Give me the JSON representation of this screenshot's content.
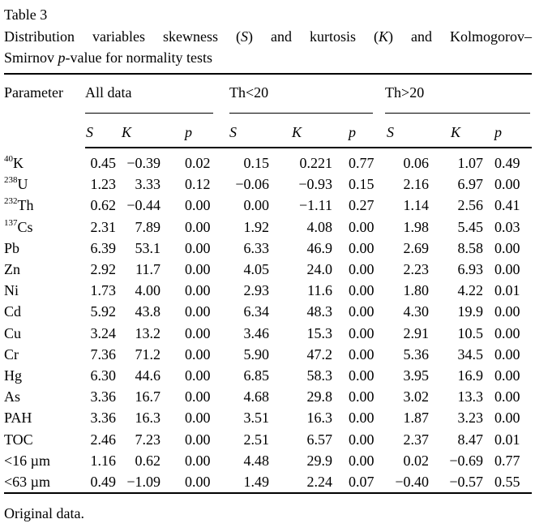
{
  "title": "Table 3",
  "caption": {
    "seg1": "Distribution variables skewness (",
    "s": "S",
    "seg2": ") and kurtosis (",
    "k": "K",
    "seg3": ") and Kolmogorov–",
    "line2_seg1": "Smirnov ",
    "p": "p",
    "line2_seg2": "-value for normality tests"
  },
  "table": {
    "param_header": "Parameter",
    "groups": [
      {
        "label": "All data"
      },
      {
        "label": "Th<20"
      },
      {
        "label": "Th>20"
      }
    ],
    "sub_headers": [
      "S",
      "K",
      "p"
    ],
    "rows": [
      {
        "param": {
          "sup": "40",
          "base": "K"
        },
        "all_data": [
          "0.45",
          "−0.39",
          "0.02"
        ],
        "th_lt_20": [
          "0.15",
          "0.221",
          "0.77"
        ],
        "th_gt_20": [
          "0.06",
          "1.07",
          "0.49"
        ]
      },
      {
        "param": {
          "sup": "238",
          "base": "U"
        },
        "all_data": [
          "1.23",
          "3.33",
          "0.12"
        ],
        "th_lt_20": [
          "−0.06",
          "−0.93",
          "0.15"
        ],
        "th_gt_20": [
          "2.16",
          "6.97",
          "0.00"
        ]
      },
      {
        "param": {
          "sup": "232",
          "base": "Th"
        },
        "all_data": [
          "0.62",
          "−0.44",
          "0.00"
        ],
        "th_lt_20": [
          "0.00",
          "−1.11",
          "0.27"
        ],
        "th_gt_20": [
          "1.14",
          "2.56",
          "0.41"
        ]
      },
      {
        "param": {
          "sup": "137",
          "base": "Cs"
        },
        "all_data": [
          "2.31",
          "7.89",
          "0.00"
        ],
        "th_lt_20": [
          "1.92",
          "4.08",
          "0.00"
        ],
        "th_gt_20": [
          "1.98",
          "5.45",
          "0.03"
        ]
      },
      {
        "param": {
          "sup": "",
          "base": "Pb"
        },
        "all_data": [
          "6.39",
          "53.1",
          "0.00"
        ],
        "th_lt_20": [
          "6.33",
          "46.9",
          "0.00"
        ],
        "th_gt_20": [
          "2.69",
          "8.58",
          "0.00"
        ]
      },
      {
        "param": {
          "sup": "",
          "base": "Zn"
        },
        "all_data": [
          "2.92",
          "11.7",
          "0.00"
        ],
        "th_lt_20": [
          "4.05",
          "24.0",
          "0.00"
        ],
        "th_gt_20": [
          "2.23",
          "6.93",
          "0.00"
        ]
      },
      {
        "param": {
          "sup": "",
          "base": "Ni"
        },
        "all_data": [
          "1.73",
          "4.00",
          "0.00"
        ],
        "th_lt_20": [
          "2.93",
          "11.6",
          "0.00"
        ],
        "th_gt_20": [
          "1.80",
          "4.22",
          "0.01"
        ]
      },
      {
        "param": {
          "sup": "",
          "base": "Cd"
        },
        "all_data": [
          "5.92",
          "43.8",
          "0.00"
        ],
        "th_lt_20": [
          "6.34",
          "48.3",
          "0.00"
        ],
        "th_gt_20": [
          "4.30",
          "19.9",
          "0.00"
        ]
      },
      {
        "param": {
          "sup": "",
          "base": "Cu"
        },
        "all_data": [
          "3.24",
          "13.2",
          "0.00"
        ],
        "th_lt_20": [
          "3.46",
          "15.3",
          "0.00"
        ],
        "th_gt_20": [
          "2.91",
          "10.5",
          "0.00"
        ]
      },
      {
        "param": {
          "sup": "",
          "base": "Cr"
        },
        "all_data": [
          "7.36",
          "71.2",
          "0.00"
        ],
        "th_lt_20": [
          "5.90",
          "47.2",
          "0.00"
        ],
        "th_gt_20": [
          "5.36",
          "34.5",
          "0.00"
        ]
      },
      {
        "param": {
          "sup": "",
          "base": "Hg"
        },
        "all_data": [
          "6.30",
          "44.6",
          "0.00"
        ],
        "th_lt_20": [
          "6.85",
          "58.3",
          "0.00"
        ],
        "th_gt_20": [
          "3.95",
          "16.9",
          "0.00"
        ]
      },
      {
        "param": {
          "sup": "",
          "base": "As"
        },
        "all_data": [
          "3.36",
          "16.7",
          "0.00"
        ],
        "th_lt_20": [
          "4.68",
          "29.8",
          "0.00"
        ],
        "th_gt_20": [
          "3.02",
          "13.3",
          "0.00"
        ]
      },
      {
        "param": {
          "sup": "",
          "base": "PAH"
        },
        "all_data": [
          "3.36",
          "16.3",
          "0.00"
        ],
        "th_lt_20": [
          "3.51",
          "16.3",
          "0.00"
        ],
        "th_gt_20": [
          "1.87",
          "3.23",
          "0.00"
        ]
      },
      {
        "param": {
          "sup": "",
          "base": "TOC"
        },
        "all_data": [
          "2.46",
          "7.23",
          "0.00"
        ],
        "th_lt_20": [
          "2.51",
          "6.57",
          "0.00"
        ],
        "th_gt_20": [
          "2.37",
          "8.47",
          "0.01"
        ]
      },
      {
        "param": {
          "sup": "",
          "base": "<16 µm"
        },
        "all_data": [
          "1.16",
          "0.62",
          "0.00"
        ],
        "th_lt_20": [
          "4.48",
          "29.9",
          "0.00"
        ],
        "th_gt_20": [
          "0.02",
          "−0.69",
          "0.77"
        ]
      },
      {
        "param": {
          "sup": "",
          "base": "<63 µm"
        },
        "all_data": [
          "0.49",
          "−1.09",
          "0.00"
        ],
        "th_lt_20": [
          "1.49",
          "2.24",
          "0.07"
        ],
        "th_gt_20": [
          "−0.40",
          "−0.57",
          "0.55"
        ]
      }
    ]
  },
  "footnote": "Original data."
}
